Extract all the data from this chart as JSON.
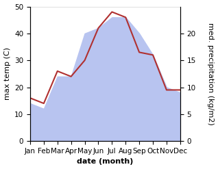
{
  "months": [
    "Jan",
    "Feb",
    "Mar",
    "Apr",
    "May",
    "Jun",
    "Jul",
    "Aug",
    "Sep",
    "Oct",
    "Nov",
    "Dec"
  ],
  "temp": [
    16,
    14,
    26,
    24,
    30,
    42,
    48,
    46,
    33,
    32,
    19,
    19
  ],
  "precip_kg": [
    7,
    6,
    12,
    12,
    20,
    21,
    23,
    23,
    20,
    16,
    10,
    9
  ],
  "temp_color": "#b03030",
  "precip_fill_color": "#b8c4f0",
  "temp_ylim": [
    0,
    50
  ],
  "precip_ylim": [
    0,
    25
  ],
  "temp_yticks": [
    0,
    10,
    20,
    30,
    40,
    50
  ],
  "precip_yticks": [
    0,
    5,
    10,
    15,
    20
  ],
  "xlabel": "date (month)",
  "ylabel_left": "max temp (C)",
  "ylabel_right": "med. precipitation (kg/m2)",
  "label_fontsize": 8,
  "tick_fontsize": 7.5,
  "precip_scale": 2.0
}
